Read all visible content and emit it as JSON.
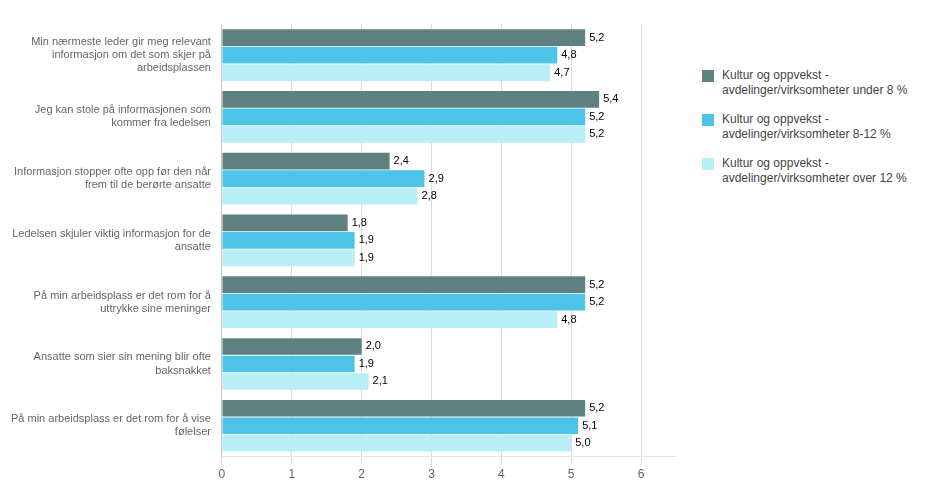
{
  "chart_data": {
    "type": "bar",
    "orientation": "horizontal",
    "categories": [
      "Min nærmeste leder gir meg relevant\ninformasjon om det som skjer på\narbeidsplassen",
      "Jeg kan stole på informasjonen som\nkommer fra ledelsen",
      "Informasjon stopper ofte opp før den når\nfrem til de berørte ansatte",
      "Ledelsen skjuler viktig informasjon for de\nansatte",
      "På min arbeidsplass er det rom for å\nuttrykke sine meninger",
      "Ansatte som sier sin mening blir ofte\nbaksnakket",
      "På min arbeidsplass er det rom for å vise\nfølelser"
    ],
    "series": [
      {
        "name": "Kultur og oppvekst -\navdelinger/virksomheter under 8 %",
        "color": "#5f8080",
        "values": [
          5.2,
          5.4,
          2.4,
          1.8,
          5.2,
          2.0,
          5.2
        ],
        "value_labels": [
          "5,2",
          "5,4",
          "2,4",
          "1,8",
          "5,2",
          "2,0",
          "5,2"
        ]
      },
      {
        "name": "Kultur og oppvekst -\navdelinger/virksomheter 8-12 %",
        "color": "#4dc3e8",
        "values": [
          4.8,
          5.2,
          2.9,
          1.9,
          5.2,
          1.9,
          5.1
        ],
        "value_labels": [
          "4,8",
          "5,2",
          "2,9",
          "1,9",
          "5,2",
          "1,9",
          "5,1"
        ]
      },
      {
        "name": "Kultur og oppvekst -\navdelinger/virksomheter over 12 %",
        "color": "#b8eef8",
        "values": [
          4.7,
          5.2,
          2.8,
          1.9,
          4.8,
          2.1,
          5.0
        ],
        "value_labels": [
          "4,7",
          "5,2",
          "2,8",
          "1,9",
          "4,8",
          "2,1",
          "5,0"
        ]
      }
    ],
    "xlim": [
      0,
      6.5
    ],
    "xticks": [
      0,
      1,
      2,
      3,
      4,
      5,
      6
    ],
    "grid": true,
    "data_labels": true,
    "legend": "right"
  }
}
